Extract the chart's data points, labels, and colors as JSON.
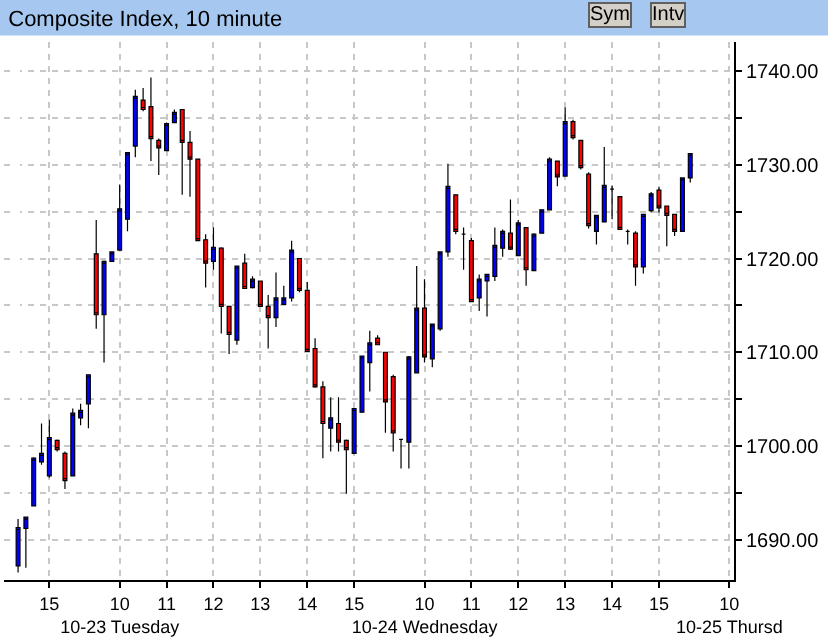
{
  "chart_data": {
    "type": "candlestick",
    "title": "Composite Index, 10 minute",
    "annotations": [
      "Sym",
      "Intv"
    ],
    "categories": [
      null,
      null,
      null,
      null,
      "15",
      null,
      null,
      null,
      null,
      null,
      null,
      null,
      null,
      "10\n10-23 Tuesday",
      null,
      null,
      null,
      null,
      null,
      "11",
      null,
      null,
      null,
      null,
      null,
      "12",
      null,
      null,
      null,
      null,
      null,
      "13",
      null,
      null,
      null,
      null,
      null,
      "14",
      null,
      null,
      null,
      null,
      null,
      "15",
      null,
      null,
      null,
      null,
      null,
      null,
      null,
      null,
      "10\n10-24 Wednesday",
      null,
      null,
      null,
      null,
      null,
      "11",
      null,
      null,
      null,
      null,
      null,
      "12",
      null,
      null,
      null,
      null,
      null,
      "13",
      null,
      null,
      null,
      null,
      null,
      "14",
      null,
      null,
      null,
      null,
      null,
      "15",
      null,
      null,
      null,
      null,
      null,
      null,
      null,
      null,
      "10\n10-25 Thursd"
    ],
    "ohlc": [
      [
        1687.2,
        1692.2,
        1686.5,
        1691.3
      ],
      [
        1691.2,
        1692.4,
        1687.0,
        1692.4
      ],
      [
        1693.6,
        1698.8,
        1693.6,
        1698.7
      ],
      [
        1698.3,
        1702.4,
        1698.0,
        1699.2
      ],
      [
        1696.8,
        1702.8,
        1696.6,
        1700.9
      ],
      [
        1700.6,
        1700.7,
        1699.4,
        1699.6
      ],
      [
        1699.2,
        1699.4,
        1695.4,
        1696.3
      ],
      [
        1696.8,
        1704.0,
        1696.8,
        1703.5
      ],
      [
        1703.0,
        1704.5,
        1702.2,
        1703.8
      ],
      [
        1704.5,
        1707.6,
        1701.9,
        1707.6
      ],
      [
        1720.5,
        1724.1,
        1712.5,
        1714.0
      ],
      [
        1714.0,
        1719.8,
        1708.9,
        1719.7
      ],
      [
        1719.7,
        1720.7,
        1719.7,
        1720.7
      ],
      [
        1720.9,
        1727.9,
        1720.9,
        1725.3
      ],
      [
        1724.2,
        1731.3,
        1722.9,
        1731.3
      ],
      [
        1732.0,
        1738.0,
        1730.8,
        1737.3
      ],
      [
        1736.9,
        1738.2,
        1735.7,
        1735.9
      ],
      [
        1736.2,
        1739.3,
        1730.4,
        1732.8
      ],
      [
        1732.6,
        1732.8,
        1728.9,
        1731.8
      ],
      [
        1731.5,
        1734.5,
        1731.5,
        1734.4
      ],
      [
        1734.5,
        1735.9,
        1734.5,
        1735.6
      ],
      [
        1735.9,
        1735.9,
        1726.8,
        1732.4
      ],
      [
        1732.4,
        1733.6,
        1726.6,
        1730.6
      ],
      [
        1730.6,
        1730.6,
        1721.9,
        1721.9
      ],
      [
        1722.0,
        1722.6,
        1716.9,
        1719.5
      ],
      [
        1719.7,
        1723.3,
        1718.8,
        1721.2
      ],
      [
        1721.1,
        1721.2,
        1712.0,
        1714.9
      ],
      [
        1714.9,
        1714.9,
        1709.8,
        1711.9
      ],
      [
        1711.3,
        1719.2,
        1710.8,
        1719.2
      ],
      [
        1719.5,
        1720.5,
        1716.8,
        1716.8
      ],
      [
        1716.9,
        1718.1,
        1716.8,
        1717.8
      ],
      [
        1717.6,
        1717.6,
        1714.9,
        1714.9
      ],
      [
        1714.9,
        1716.1,
        1710.4,
        1713.7
      ],
      [
        1713.7,
        1718.5,
        1712.7,
        1715.8
      ],
      [
        1715.1,
        1717.1,
        1715.1,
        1715.8
      ],
      [
        1715.8,
        1721.9,
        1715.4,
        1720.9
      ],
      [
        1720.0,
        1720.0,
        1716.4,
        1716.6
      ],
      [
        1716.6,
        1717.5,
        1710.1,
        1710.1
      ],
      [
        1710.4,
        1711.5,
        1706.2,
        1706.3
      ],
      [
        1706.3,
        1706.9,
        1698.7,
        1702.4
      ],
      [
        1701.9,
        1705.2,
        1699.4,
        1703.0
      ],
      [
        1702.4,
        1705.2,
        1699.4,
        1700.4
      ],
      [
        1700.6,
        1700.7,
        1694.9,
        1699.6
      ],
      [
        1699.2,
        1704.0,
        1699.2,
        1704.0
      ],
      [
        1703.6,
        1709.6,
        1703.6,
        1709.6
      ],
      [
        1708.9,
        1712.3,
        1705.8,
        1711.0
      ],
      [
        1711.5,
        1711.8,
        1710.8,
        1710.8
      ],
      [
        1710.0,
        1710.0,
        1701.4,
        1704.7
      ],
      [
        1707.4,
        1707.6,
        1699.4,
        1701.4
      ],
      [
        1700.7,
        1700.7,
        1697.6,
        1700.7
      ],
      [
        1700.4,
        1709.6,
        1697.6,
        1709.5
      ],
      [
        1707.8,
        1719.2,
        1707.8,
        1714.7
      ],
      [
        1714.7,
        1717.8,
        1708.9,
        1709.5
      ],
      [
        1709.3,
        1713.0,
        1708.4,
        1713.0
      ],
      [
        1712.5,
        1720.7,
        1712.3,
        1720.7
      ],
      [
        1720.7,
        1730.1,
        1720.2,
        1727.7
      ],
      [
        1726.8,
        1726.8,
        1722.6,
        1722.9
      ],
      [
        1722.6,
        1723.3,
        1718.8,
        1722.6
      ],
      [
        1721.9,
        1722.2,
        1715.4,
        1715.4
      ],
      [
        1715.8,
        1718.3,
        1714.4,
        1717.8
      ],
      [
        1717.6,
        1718.3,
        1713.8,
        1718.3
      ],
      [
        1718.1,
        1723.3,
        1717.6,
        1721.4
      ],
      [
        1721.1,
        1723.1,
        1720.2,
        1722.9
      ],
      [
        1722.7,
        1726.3,
        1720.9,
        1721.0
      ],
      [
        1720.3,
        1724.1,
        1720.3,
        1723.8
      ],
      [
        1723.3,
        1723.3,
        1717.1,
        1718.8
      ],
      [
        1718.7,
        1722.7,
        1718.7,
        1722.6
      ],
      [
        1722.7,
        1725.2,
        1722.7,
        1725.2
      ],
      [
        1725.2,
        1730.8,
        1725.2,
        1730.6
      ],
      [
        1730.4,
        1730.4,
        1727.7,
        1728.7
      ],
      [
        1728.8,
        1736.1,
        1728.8,
        1734.6
      ],
      [
        1734.6,
        1734.8,
        1732.7,
        1732.9
      ],
      [
        1732.6,
        1732.6,
        1729.5,
        1729.7
      ],
      [
        1729.0,
        1729.2,
        1723.2,
        1723.5
      ],
      [
        1722.9,
        1724.6,
        1721.5,
        1724.6
      ],
      [
        1723.9,
        1731.9,
        1723.9,
        1727.8
      ],
      [
        1727.4,
        1727.8,
        1724.2,
        1727.4
      ],
      [
        1726.6,
        1726.6,
        1723.1,
        1723.1
      ],
      [
        1722.9,
        1723.1,
        1721.5,
        1722.9
      ],
      [
        1722.7,
        1722.9,
        1717.1,
        1719.1
      ],
      [
        1719.1,
        1724.7,
        1718.4,
        1724.7
      ],
      [
        1725.1,
        1727.1,
        1724.9,
        1726.9
      ],
      [
        1727.3,
        1727.6,
        1724.9,
        1725.4
      ],
      [
        1725.6,
        1725.6,
        1721.3,
        1724.6
      ],
      [
        1724.7,
        1724.7,
        1722.4,
        1722.9
      ],
      [
        1722.9,
        1728.6,
        1722.9,
        1728.6
      ],
      [
        1728.6,
        1731.2,
        1728.1,
        1731.2
      ],
      null,
      null,
      null,
      null,
      null
    ],
    "colors": [
      "#0000ff",
      "#0000ff",
      "#0000ff",
      "#0000ff",
      "#0000ff",
      "#ff0000",
      "#ff0000",
      "#0000ff",
      "#0000ff",
      "#0000ff",
      "#ff0000",
      "#0000ff",
      "#0000ff",
      "#0000ff",
      "#0000ff",
      "#0000ff",
      "#ff0000",
      "#ff0000",
      "#ff0000",
      "#0000ff",
      "#0000ff",
      "#ff0000",
      "#ff0000",
      "#ff0000",
      "#ff0000",
      "#0000ff",
      "#ff0000",
      "#ff0000",
      "#0000ff",
      "#ff0000",
      "#0000ff",
      "#ff0000",
      "#ff0000",
      "#0000ff",
      "#0000ff",
      "#0000ff",
      "#ff0000",
      "#ff0000",
      "#ff0000",
      "#ff0000",
      "#0000ff",
      "#ff0000",
      "#ff0000",
      "#0000ff",
      "#0000ff",
      "#0000ff",
      "#ff0000",
      "#ff0000",
      "#ff0000",
      "#000000",
      "#0000ff",
      "#0000ff",
      "#ff0000",
      "#0000ff",
      "#0000ff",
      "#0000ff",
      "#ff0000",
      "#000000",
      "#ff0000",
      "#0000ff",
      "#0000ff",
      "#0000ff",
      "#0000ff",
      "#ff0000",
      "#0000ff",
      "#ff0000",
      "#0000ff",
      "#0000ff",
      "#0000ff",
      "#ff0000",
      "#0000ff",
      "#ff0000",
      "#ff0000",
      "#ff0000",
      "#0000ff",
      "#0000ff",
      "#000000",
      "#ff0000",
      "#000000",
      "#ff0000",
      "#0000ff",
      "#0000ff",
      "#ff0000",
      "#ff0000",
      "#ff0000",
      "#0000ff",
      "#0000ff",
      null,
      null,
      null,
      null,
      null
    ],
    "ylim": [
      1685.7,
      1743.1
    ],
    "yticks": [
      {
        "value": 1690,
        "label": "1690.00"
      },
      {
        "value": 1695,
        "label": null
      },
      {
        "value": 1700,
        "label": "1700.00"
      },
      {
        "value": 1705,
        "label": null
      },
      {
        "value": 1710,
        "label": "1710.00"
      },
      {
        "value": 1715,
        "label": null
      },
      {
        "value": 1720,
        "label": "1720.00"
      },
      {
        "value": 1725,
        "label": null
      },
      {
        "value": 1730,
        "label": "1730.00"
      },
      {
        "value": 1735,
        "label": null
      },
      {
        "value": 1740,
        "label": "1740.00"
      }
    ],
    "grid": true
  }
}
